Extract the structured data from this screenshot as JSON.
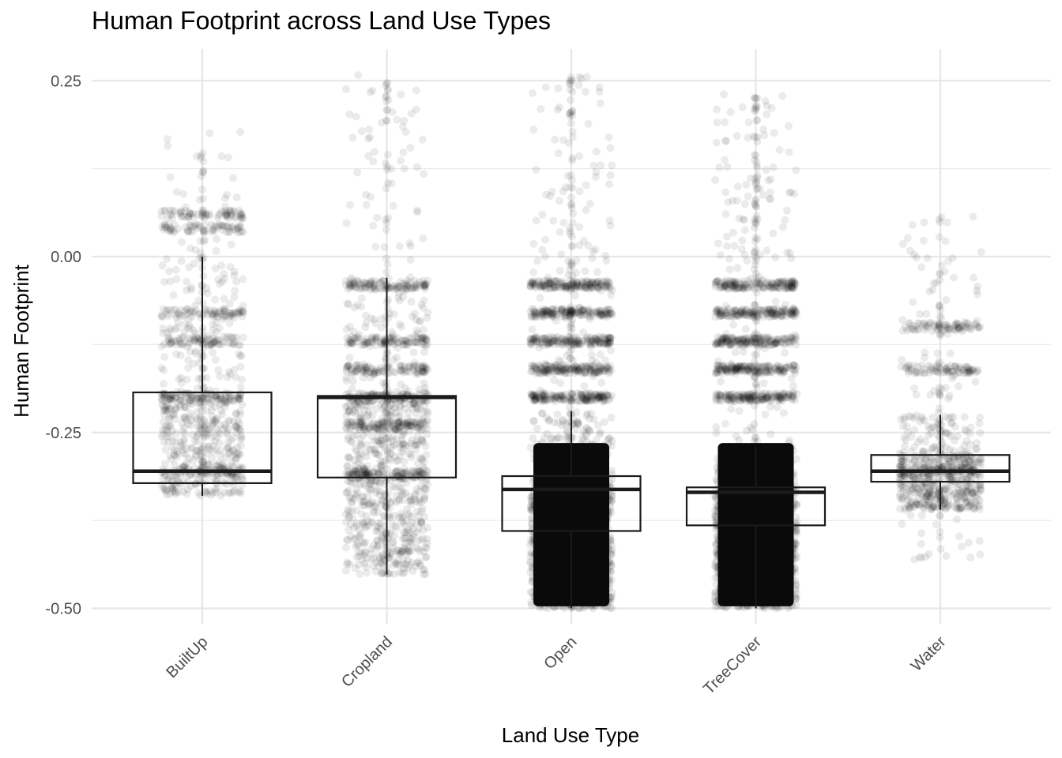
{
  "chart_data": {
    "type": "boxplot",
    "title": "Human Footprint across Land Use Types",
    "xlabel": "Land Use Type",
    "ylabel": "Human Footprint",
    "categories": [
      "BuiltUp",
      "Cropland",
      "Open",
      "TreeCover",
      "Water"
    ],
    "ylim": [
      -0.55,
      0.27
    ],
    "yticks": [
      0.25,
      0.0,
      -0.25,
      -0.5
    ],
    "ytick_labels": [
      "0.25",
      "0.00",
      "-0.25",
      "-0.50"
    ],
    "grid": true,
    "point_color": "#000000",
    "point_alpha": 0.08,
    "boxes": [
      {
        "category": "BuiltUp",
        "q1": -0.322,
        "median": -0.305,
        "q3": -0.193,
        "whisker_low": -0.34,
        "whisker_high": 0.0,
        "points_range": [
          -0.34,
          0.197
        ],
        "bands": [
          -0.2,
          -0.305,
          -0.12,
          -0.08,
          0.04,
          0.06
        ],
        "density": 0.25
      },
      {
        "category": "Cropland",
        "q1": -0.314,
        "median": -0.2,
        "q3": -0.198,
        "whisker_low": -0.452,
        "whisker_high": -0.03,
        "points_range": [
          -0.455,
          0.258
        ],
        "bands": [
          -0.2,
          -0.31,
          -0.04,
          -0.12,
          -0.24,
          -0.16
        ],
        "density": 0.5
      },
      {
        "category": "Open",
        "q1": -0.39,
        "median": -0.331,
        "q3": -0.312,
        "whisker_low": -0.5,
        "whisker_high": -0.22,
        "points_range": [
          -0.5,
          0.258
        ],
        "bands": [
          -0.04,
          -0.12,
          -0.16,
          -0.2,
          -0.08
        ],
        "density": 1.0
      },
      {
        "category": "TreeCover",
        "q1": -0.382,
        "median": -0.335,
        "q3": -0.328,
        "whisker_low": -0.5,
        "whisker_high": -0.27,
        "points_range": [
          -0.5,
          0.236
        ],
        "bands": [
          -0.04,
          -0.08,
          -0.12,
          -0.16,
          -0.2
        ],
        "density": 1.0
      },
      {
        "category": "Water",
        "q1": -0.32,
        "median": -0.305,
        "q3": -0.282,
        "whisker_low": -0.36,
        "whisker_high": -0.225,
        "points_range": [
          -0.435,
          0.06
        ],
        "bands": [
          -0.305,
          -0.16,
          -0.1
        ],
        "density": 0.3
      }
    ]
  }
}
